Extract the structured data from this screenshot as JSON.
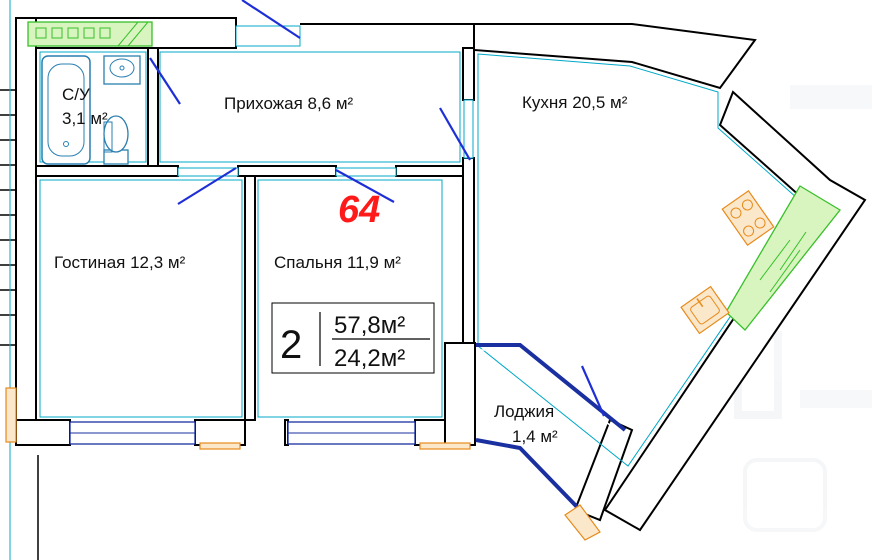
{
  "apartment": {
    "number": "64",
    "rooms_count": "2",
    "total_area": "57,8м²",
    "living_area": "24,2м²"
  },
  "rooms": {
    "bathroom": {
      "name": "С/У",
      "area": "3,1 м²"
    },
    "hallway": {
      "label": "Прихожая 8,6 м²"
    },
    "kitchen": {
      "label": "Кухня 20,5 м²"
    },
    "living_room": {
      "label": "Гостиная 12,3 м²"
    },
    "bedroom": {
      "label": "Спальня 11,9 м²"
    },
    "loggia": {
      "name": "Лоджия",
      "area": "1,4 м²"
    }
  },
  "colors": {
    "wall": "#000000",
    "window": "#1a2fa0",
    "door": "#1f2fd6",
    "apartment_number": "#ff1a1a",
    "ventilation_hatch": "#39c02a",
    "appliance": "#e88a1a"
  }
}
